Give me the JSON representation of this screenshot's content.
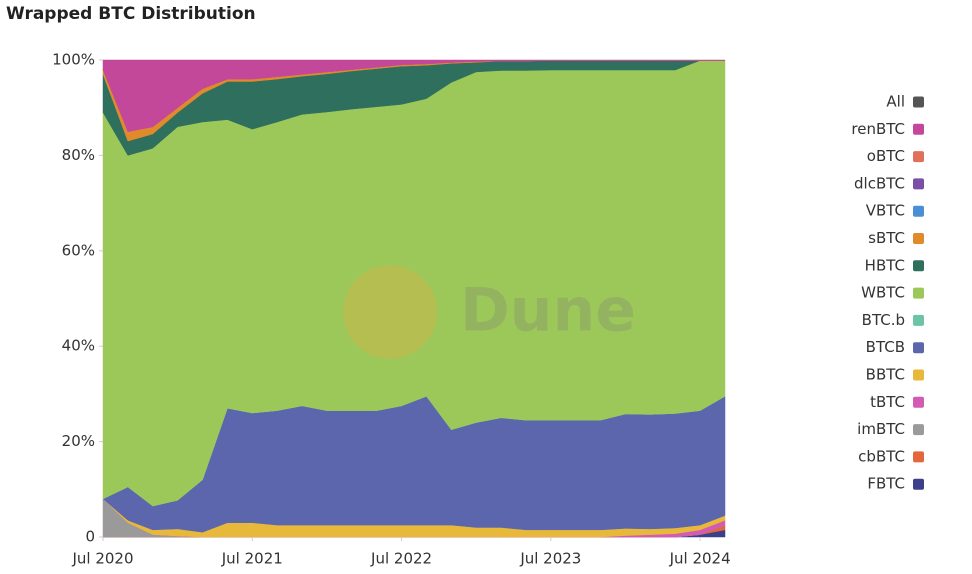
{
  "chart_data": {
    "type": "stacked-area",
    "title": "Wrapped BTC Distribution",
    "watermark": "Dune",
    "total_entry": {
      "name": "All",
      "color": "#555555"
    },
    "x": [
      "2020-07",
      "2020-09",
      "2020-11",
      "2021-01",
      "2021-03",
      "2021-05",
      "2021-07",
      "2021-09",
      "2021-11",
      "2022-01",
      "2022-03",
      "2022-05",
      "2022-07",
      "2022-09",
      "2022-11",
      "2023-01",
      "2023-03",
      "2023-05",
      "2023-07",
      "2023-09",
      "2023-11",
      "2024-01",
      "2024-03",
      "2024-05",
      "2024-07",
      "2024-09"
    ],
    "xlim": [
      "2020-07",
      "2024-09"
    ],
    "xticks": [
      {
        "value": "2020-07",
        "label": "Jul 2020"
      },
      {
        "value": "2021-07",
        "label": "Jul 2021"
      },
      {
        "value": "2022-07",
        "label": "Jul 2022"
      },
      {
        "value": "2023-07",
        "label": "Jul 2023"
      },
      {
        "value": "2024-07",
        "label": "Jul 2024"
      }
    ],
    "ylim": [
      0,
      100
    ],
    "yticks": [
      0,
      {
        "value": 20,
        "label": "20%"
      },
      {
        "value": 40,
        "label": "40%"
      },
      {
        "value": 60,
        "label": "60%"
      },
      {
        "value": 80,
        "label": "80%"
      },
      {
        "value": 100,
        "label": "100%"
      }
    ],
    "series": [
      {
        "name": "renBTC",
        "color": "#c4489a",
        "values": [
          2,
          15,
          14,
          10,
          6,
          4,
          4,
          3.5,
          3,
          2.5,
          2,
          1.5,
          1,
          0.8,
          0.5,
          0.3,
          0.2,
          0.2,
          0.1,
          0.1,
          0.1,
          0.1,
          0.1,
          0.1,
          0.1,
          0.1
        ]
      },
      {
        "name": "oBTC",
        "color": "#e0705a",
        "values": [
          0,
          0,
          0,
          0,
          0,
          0,
          0,
          0,
          0,
          0,
          0,
          0,
          0,
          0,
          0,
          0,
          0,
          0,
          0,
          0,
          0,
          0,
          0,
          0,
          0,
          0
        ]
      },
      {
        "name": "dlcBTC",
        "color": "#7a4fa6",
        "values": [
          0,
          0,
          0,
          0,
          0,
          0,
          0,
          0,
          0,
          0,
          0,
          0,
          0,
          0,
          0,
          0,
          0,
          0,
          0,
          0,
          0,
          0,
          0,
          0,
          0,
          0
        ]
      },
      {
        "name": "VBTC",
        "color": "#4a8fd4",
        "values": [
          0,
          0,
          0,
          0,
          0,
          0,
          0,
          0,
          0,
          0,
          0,
          0,
          0,
          0,
          0,
          0,
          0,
          0,
          0,
          0,
          0,
          0,
          0,
          0,
          0,
          0
        ]
      },
      {
        "name": "sBTC",
        "color": "#e08a2c",
        "values": [
          1,
          2,
          1.5,
          1,
          1,
          0.5,
          0.5,
          0.5,
          0.4,
          0.4,
          0.3,
          0.3,
          0.3,
          0.3,
          0.2,
          0.2,
          0,
          0,
          0,
          0,
          0,
          0,
          0,
          0,
          0,
          0
        ]
      },
      {
        "name": "HBTC",
        "color": "#2f6f5e",
        "values": [
          8,
          3,
          3,
          3,
          6,
          8,
          10,
          9,
          8,
          8,
          8,
          8,
          8,
          7,
          4,
          2,
          2,
          2,
          2,
          2,
          2,
          2,
          2,
          2,
          0,
          0
        ]
      },
      {
        "name": "WBTC",
        "color": "#9cc85a",
        "values": [
          81,
          69.5,
          75,
          78.3,
          75,
          60.5,
          59.5,
          60.5,
          61.1,
          62.6,
          63.2,
          63.7,
          63.2,
          62.4,
          72.8,
          73.5,
          72.8,
          73.3,
          73.4,
          73.4,
          73.4,
          72.1,
          72.2,
          72,
          73.4,
          70.4
        ]
      },
      {
        "name": "BTC.b",
        "color": "#6cc4a4",
        "values": [
          0,
          0,
          0,
          0,
          0,
          0,
          0,
          0,
          0,
          0,
          0,
          0,
          0,
          0,
          0,
          0,
          0,
          0,
          0,
          0,
          0,
          0,
          0,
          0,
          0,
          0
        ]
      },
      {
        "name": "BTCB",
        "color": "#5b66ac",
        "values": [
          0,
          7,
          5,
          6,
          11,
          24,
          23,
          24,
          25,
          24,
          24,
          24,
          25,
          27,
          20,
          22,
          23,
          23,
          23,
          23,
          23,
          24,
          24,
          24,
          24,
          25
        ]
      },
      {
        "name": "BBTC",
        "color": "#e8b83a",
        "values": [
          0,
          0.5,
          1,
          1.5,
          1,
          3,
          3,
          2.5,
          2.5,
          2.5,
          2.5,
          2.5,
          2.5,
          2.5,
          2.5,
          2,
          2,
          1.5,
          1.5,
          1.5,
          1.5,
          1.5,
          1.2,
          1.2,
          1,
          1
        ]
      },
      {
        "name": "tBTC",
        "color": "#d45bb4",
        "values": [
          0,
          0,
          0,
          0,
          0,
          0,
          0,
          0,
          0,
          0,
          0,
          0,
          0,
          0,
          0,
          0,
          0,
          0,
          0,
          0,
          0,
          0.3,
          0.5,
          0.7,
          1,
          1
        ]
      },
      {
        "name": "imBTC",
        "color": "#9a9a9a",
        "values": [
          8,
          3,
          0.5,
          0.2,
          0,
          0,
          0,
          0,
          0,
          0,
          0,
          0,
          0,
          0,
          0,
          0,
          0,
          0,
          0,
          0,
          0,
          0,
          0,
          0,
          0,
          0
        ]
      },
      {
        "name": "cbBTC",
        "color": "#e4673c",
        "values": [
          0,
          0,
          0,
          0,
          0,
          0,
          0,
          0,
          0,
          0,
          0,
          0,
          0,
          0,
          0,
          0,
          0,
          0,
          0,
          0,
          0,
          0,
          0,
          0,
          0,
          1
        ]
      },
      {
        "name": "FBTC",
        "color": "#3d3f8a",
        "values": [
          0,
          0,
          0,
          0,
          0,
          0,
          0,
          0,
          0,
          0,
          0,
          0,
          0,
          0,
          0,
          0,
          0,
          0,
          0,
          0,
          0,
          0,
          0,
          0,
          0.5,
          1.5
        ]
      }
    ]
  }
}
